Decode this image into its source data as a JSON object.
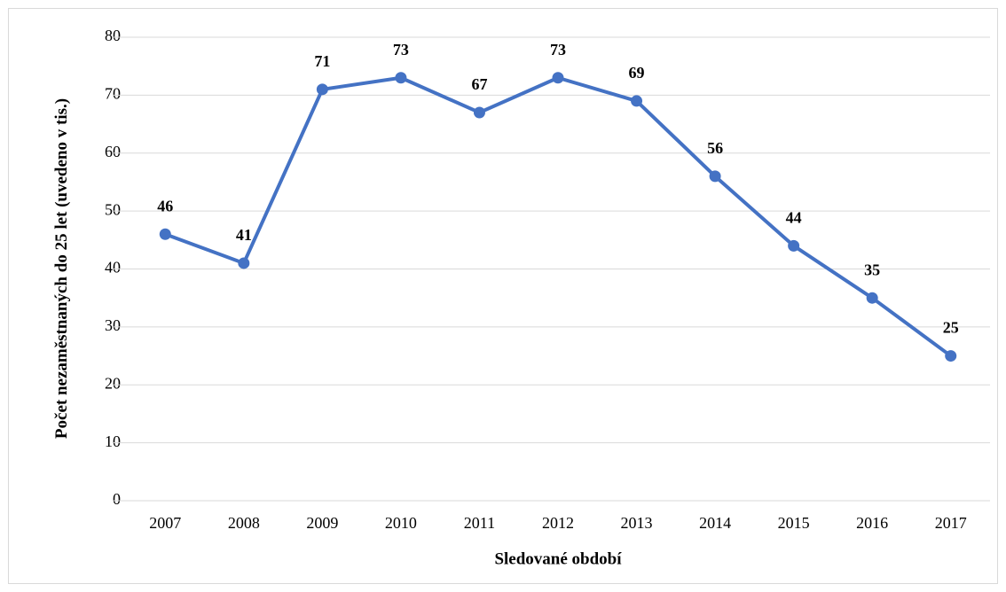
{
  "chart_data": {
    "type": "line",
    "categories": [
      "2007",
      "2008",
      "2009",
      "2010",
      "2011",
      "2012",
      "2013",
      "2014",
      "2015",
      "2016",
      "2017"
    ],
    "series": [
      {
        "name": "Počet nezaměstnaných do 25 let",
        "color": "#4472c4",
        "values": [
          46,
          41,
          71,
          73,
          67,
          73,
          69,
          56,
          44,
          35,
          25
        ]
      }
    ],
    "xlabel": "Sledované období",
    "ylabel": "Počet nezaměstnaných do 25 let  (uvedeno v tis.)",
    "ylim": [
      0,
      80
    ],
    "yticks": [
      0,
      10,
      20,
      30,
      40,
      50,
      60,
      70,
      80
    ],
    "grid": true
  }
}
